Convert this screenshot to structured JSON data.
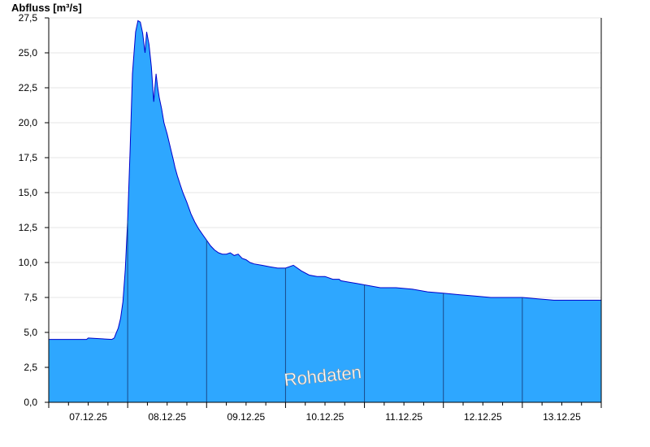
{
  "chart_data": {
    "type": "area",
    "title": "",
    "ylabel": "Abfluss [m³/s]",
    "xlabel": "",
    "watermark": "Rohdaten",
    "ylim": [
      0,
      27.5
    ],
    "xlim": [
      0,
      7
    ],
    "y_ticks": [
      "0,0",
      "2,5",
      "5,0",
      "7,5",
      "10,0",
      "12,5",
      "15,0",
      "17,5",
      "20,0",
      "22,5",
      "25,0",
      "27,5"
    ],
    "x_ticks": [
      "07.12.25",
      "08.12.25",
      "09.12.25",
      "10.12.25",
      "11.12.25",
      "12.12.25",
      "13.12.25"
    ],
    "grid": true,
    "colors": {
      "fill": "#2ea7ff",
      "line": "#0000cc",
      "day_line": "#1a4a8a",
      "grid": "#e6e6e6"
    },
    "series": [
      {
        "values_x": [
          0.0,
          0.3,
          0.48,
          0.5,
          0.8,
          0.83,
          0.85,
          0.88,
          0.91,
          0.94,
          0.97,
          1.0,
          1.03,
          1.06,
          1.1,
          1.13,
          1.16,
          1.19,
          1.22,
          1.24,
          1.27,
          1.3,
          1.33,
          1.36,
          1.38,
          1.4,
          1.43,
          1.46,
          1.5,
          1.55,
          1.58,
          1.6,
          1.63,
          1.67,
          1.7,
          1.75,
          1.8,
          1.85,
          1.9,
          1.95,
          2.0,
          2.05,
          2.1,
          2.15,
          2.2,
          2.25,
          2.3,
          2.35,
          2.4,
          2.45,
          2.5,
          2.55,
          2.6,
          2.7,
          2.8,
          2.9,
          3.0,
          3.1,
          3.2,
          3.3,
          3.4,
          3.5,
          3.6,
          3.65,
          3.68,
          3.7,
          3.8,
          3.9,
          4.0,
          4.1,
          4.2,
          4.4,
          4.6,
          4.8,
          5.0,
          5.2,
          5.4,
          5.6,
          5.8,
          6.0,
          6.2,
          6.4,
          6.6,
          6.8,
          7.0
        ],
        "values": [
          4.5,
          4.5,
          4.5,
          4.6,
          4.5,
          4.6,
          4.9,
          5.3,
          6.0,
          7.2,
          9.5,
          13.0,
          18.0,
          23.5,
          26.5,
          27.3,
          27.2,
          26.4,
          25.0,
          26.5,
          25.6,
          24.0,
          21.5,
          23.5,
          22.5,
          21.8,
          21.0,
          20.0,
          19.2,
          18.0,
          17.3,
          16.8,
          16.2,
          15.5,
          15.0,
          14.3,
          13.5,
          12.9,
          12.4,
          12.0,
          11.6,
          11.2,
          10.9,
          10.7,
          10.6,
          10.6,
          10.7,
          10.5,
          10.6,
          10.3,
          10.2,
          10.0,
          9.9,
          9.8,
          9.7,
          9.6,
          9.6,
          9.8,
          9.4,
          9.1,
          9.0,
          9.0,
          8.8,
          8.8,
          8.8,
          8.7,
          8.6,
          8.5,
          8.4,
          8.3,
          8.2,
          8.2,
          8.1,
          7.9,
          7.8,
          7.7,
          7.6,
          7.5,
          7.5,
          7.5,
          7.4,
          7.3,
          7.3,
          7.3,
          7.3
        ]
      }
    ]
  }
}
